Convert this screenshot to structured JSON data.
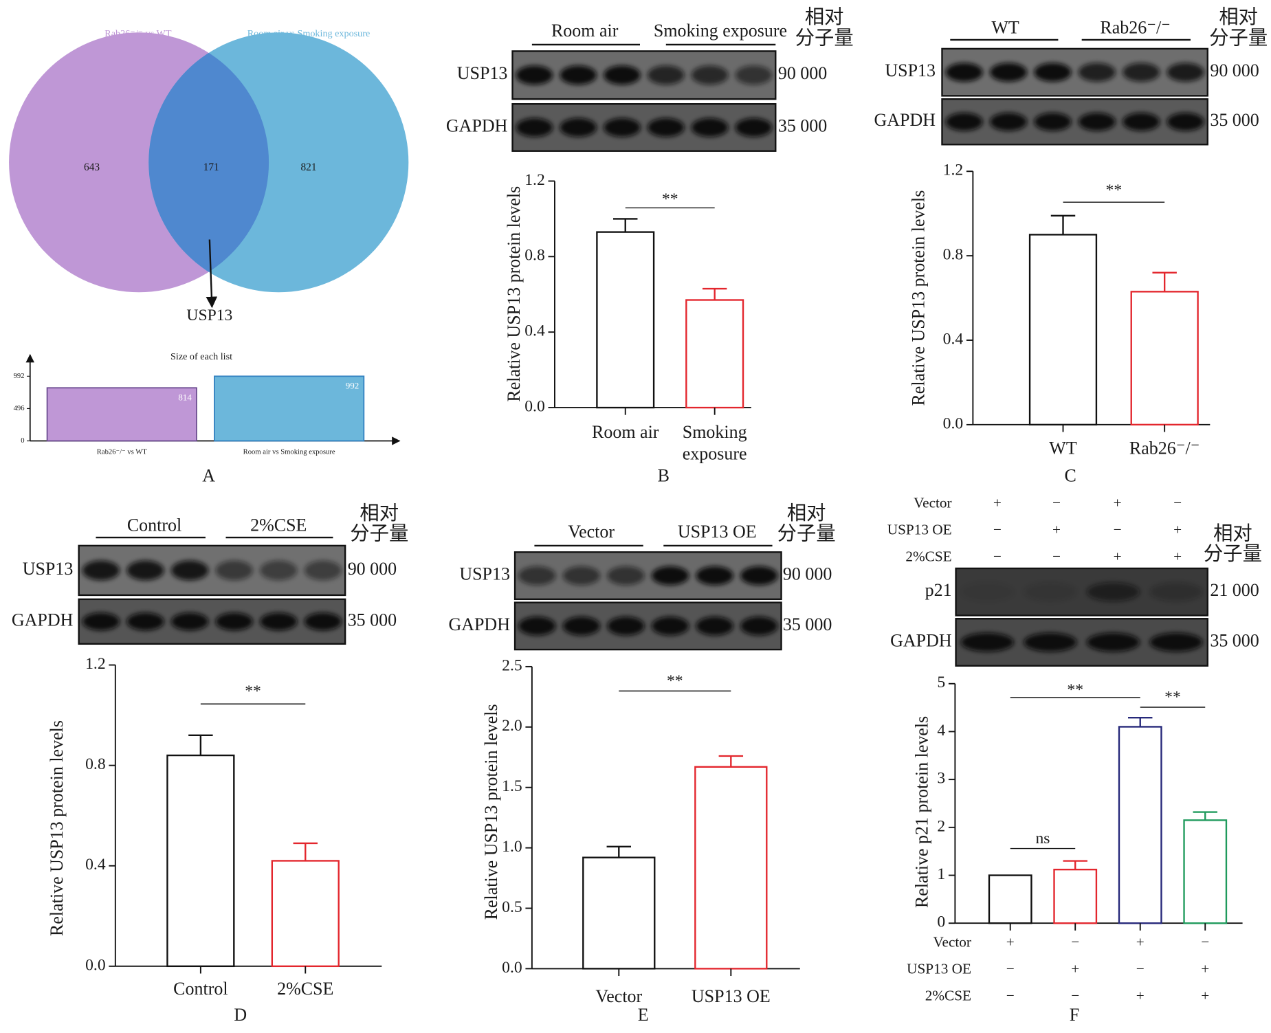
{
  "chart_data": [
    {
      "type": "venn",
      "sets": [
        {
          "name": "Rab26⁻/⁻ vs WT",
          "color": "#bf97d6"
        },
        {
          "name": "Room air vs Smoking exposure",
          "color": "#6cb7db"
        }
      ],
      "values": [
        643,
        171,
        821
      ],
      "overlap_color": "#4f88cf",
      "annotation": "USP13"
    },
    {
      "type": "bar",
      "title": "Size of each list",
      "categories": [
        "Rab26⁻/⁻ vs WT",
        "Room air vs Smoking exposure"
      ],
      "values": [
        814,
        992
      ],
      "colors": [
        "#bf97d6",
        "#6cb7db"
      ],
      "edgecolors": [
        "#6a4a8f",
        "#2f7fbf"
      ],
      "ylim": [
        0,
        1320
      ],
      "yticks": [
        0,
        496,
        992
      ],
      "panel": "A"
    },
    {
      "type": "bar",
      "panel": "B",
      "ylabel": "Relative USP13 protein levels",
      "categories": [
        "Room air",
        "Smoking exposure"
      ],
      "values": [
        0.93,
        0.57
      ],
      "errors": [
        0.07,
        0.06
      ],
      "colors": [
        "#111111",
        "#e3262d"
      ],
      "ylim": [
        0,
        1.2
      ],
      "yticks": [
        {
          "value": 0,
          "label": "0.0"
        },
        {
          "value": 0.4,
          "label": "0.4"
        },
        {
          "value": 0.8,
          "label": "0.8"
        },
        {
          "value": 1.2,
          "label": "1.2"
        }
      ],
      "significance": [
        {
          "label": "**",
          "from": 0,
          "to": 1
        }
      ],
      "blot": {
        "groups": [
          "Room air",
          "Smoking exposure"
        ],
        "mw_header": [
          "相对",
          "分子量"
        ],
        "rows": [
          {
            "label": "USP13",
            "mw": "90 000"
          },
          {
            "label": "GAPDH",
            "mw": "35 000"
          }
        ]
      }
    },
    {
      "type": "bar",
      "panel": "C",
      "ylabel": "Relative USP13 protein levels",
      "categories": [
        "WT",
        "Rab26⁻/⁻"
      ],
      "values": [
        0.9,
        0.63
      ],
      "errors": [
        0.09,
        0.09
      ],
      "colors": [
        "#111111",
        "#e3262d"
      ],
      "ylim": [
        0,
        1.2
      ],
      "yticks": [
        {
          "value": 0,
          "label": "0.0"
        },
        {
          "value": 0.4,
          "label": "0.4"
        },
        {
          "value": 0.8,
          "label": "0.8"
        },
        {
          "value": 1.2,
          "label": "1.2"
        }
      ],
      "significance": [
        {
          "label": "**",
          "from": 0,
          "to": 1
        }
      ],
      "blot": {
        "groups": [
          "WT",
          "Rab26⁻/⁻"
        ],
        "mw_header": [
          "相对",
          "分子量"
        ],
        "rows": [
          {
            "label": "USP13",
            "mw": "90 000"
          },
          {
            "label": "GAPDH",
            "mw": "35 000"
          }
        ]
      }
    },
    {
      "type": "bar",
      "panel": "D",
      "ylabel": "Relative USP13 protein levels",
      "categories": [
        "Control",
        "2%CSE"
      ],
      "values": [
        0.84,
        0.42
      ],
      "errors": [
        0.08,
        0.07
      ],
      "colors": [
        "#111111",
        "#e3262d"
      ],
      "ylim": [
        0,
        1.2
      ],
      "yticks": [
        {
          "value": 0,
          "label": "0.0"
        },
        {
          "value": 0.4,
          "label": "0.4"
        },
        {
          "value": 0.8,
          "label": "0.8"
        },
        {
          "value": 1.2,
          "label": "1.2"
        }
      ],
      "significance": [
        {
          "label": "**",
          "from": 0,
          "to": 1
        }
      ],
      "blot": {
        "groups": [
          "Control",
          "2%CSE"
        ],
        "mw_header": [
          "相对",
          "分子量"
        ],
        "rows": [
          {
            "label": "USP13",
            "mw": "90 000"
          },
          {
            "label": "GAPDH",
            "mw": "35 000"
          }
        ]
      }
    },
    {
      "type": "bar",
      "panel": "E",
      "ylabel": "Relative USP13 protein levels",
      "categories": [
        "Vector",
        "USP13 OE"
      ],
      "values": [
        0.92,
        1.67
      ],
      "errors": [
        0.09,
        0.09
      ],
      "colors": [
        "#111111",
        "#e3262d"
      ],
      "ylim": [
        0,
        2.5
      ],
      "yticks": [
        {
          "value": 0,
          "label": "0.0"
        },
        {
          "value": 0.5,
          "label": "0.5"
        },
        {
          "value": 1,
          "label": "1.0"
        },
        {
          "value": 1.5,
          "label": "1.5"
        },
        {
          "value": 2,
          "label": "2.0"
        },
        {
          "value": 2.5,
          "label": "2.5"
        }
      ],
      "significance": [
        {
          "label": "**",
          "from": 0,
          "to": 1
        }
      ],
      "blot": {
        "groups": [
          "Vector",
          "USP13 OE"
        ],
        "mw_header": [
          "相对",
          "分子量"
        ],
        "rows": [
          {
            "label": "USP13",
            "mw": "90 000"
          },
          {
            "label": "GAPDH",
            "mw": "35 000"
          }
        ]
      }
    },
    {
      "type": "bar",
      "panel": "F",
      "ylabel": "Relative p21 protein levels",
      "conditions": [
        {
          "name": "Vector",
          "signs": [
            "+",
            "−",
            "+",
            "−"
          ]
        },
        {
          "name": "USP13 OE",
          "signs": [
            "−",
            "+",
            "−",
            "+"
          ]
        },
        {
          "name": "2%CSE",
          "signs": [
            "−",
            "−",
            "+",
            "+"
          ]
        }
      ],
      "values": [
        1.0,
        1.12,
        4.1,
        2.15
      ],
      "errors": [
        0,
        0.18,
        0.19,
        0.17
      ],
      "colors": [
        "#111111",
        "#e3262d",
        "#26287a",
        "#1f9a5c"
      ],
      "ylim": [
        0,
        5
      ],
      "yticks": [
        0,
        1,
        2,
        3,
        4,
        5
      ],
      "significance": [
        {
          "label": "ns",
          "from": 0,
          "to": 1
        },
        {
          "label": "**",
          "from": 0,
          "to": 2
        },
        {
          "label": "**",
          "from": 2,
          "to": 3
        }
      ],
      "blot": {
        "mw_header": [
          "相对",
          "分子量"
        ],
        "rows": [
          {
            "label": "p21",
            "mw": "21 000"
          },
          {
            "label": "GAPDH",
            "mw": "35 000"
          }
        ]
      }
    }
  ]
}
